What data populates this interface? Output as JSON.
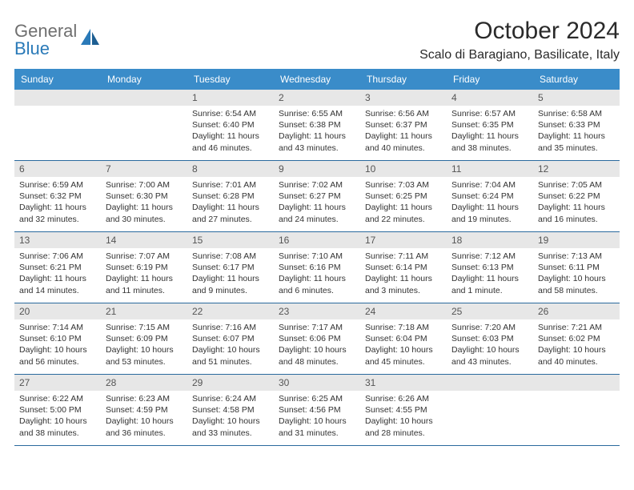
{
  "logo": {
    "text_gray": "General",
    "text_blue": "Blue"
  },
  "title": "October 2024",
  "location": "Scalo di Baragiano, Basilicate, Italy",
  "colors": {
    "header_bg": "#3a8cc9",
    "daynum_bg": "#e7e7e7",
    "week_border": "#2a6a9e",
    "logo_gray": "#6f6f6f",
    "logo_blue": "#2a7ab8"
  },
  "weekdays": [
    "Sunday",
    "Monday",
    "Tuesday",
    "Wednesday",
    "Thursday",
    "Friday",
    "Saturday"
  ],
  "weeks": [
    [
      {
        "n": "",
        "sunrise": "",
        "sunset": "",
        "daylight": ""
      },
      {
        "n": "",
        "sunrise": "",
        "sunset": "",
        "daylight": ""
      },
      {
        "n": "1",
        "sunrise": "Sunrise: 6:54 AM",
        "sunset": "Sunset: 6:40 PM",
        "daylight": "Daylight: 11 hours and 46 minutes."
      },
      {
        "n": "2",
        "sunrise": "Sunrise: 6:55 AM",
        "sunset": "Sunset: 6:38 PM",
        "daylight": "Daylight: 11 hours and 43 minutes."
      },
      {
        "n": "3",
        "sunrise": "Sunrise: 6:56 AM",
        "sunset": "Sunset: 6:37 PM",
        "daylight": "Daylight: 11 hours and 40 minutes."
      },
      {
        "n": "4",
        "sunrise": "Sunrise: 6:57 AM",
        "sunset": "Sunset: 6:35 PM",
        "daylight": "Daylight: 11 hours and 38 minutes."
      },
      {
        "n": "5",
        "sunrise": "Sunrise: 6:58 AM",
        "sunset": "Sunset: 6:33 PM",
        "daylight": "Daylight: 11 hours and 35 minutes."
      }
    ],
    [
      {
        "n": "6",
        "sunrise": "Sunrise: 6:59 AM",
        "sunset": "Sunset: 6:32 PM",
        "daylight": "Daylight: 11 hours and 32 minutes."
      },
      {
        "n": "7",
        "sunrise": "Sunrise: 7:00 AM",
        "sunset": "Sunset: 6:30 PM",
        "daylight": "Daylight: 11 hours and 30 minutes."
      },
      {
        "n": "8",
        "sunrise": "Sunrise: 7:01 AM",
        "sunset": "Sunset: 6:28 PM",
        "daylight": "Daylight: 11 hours and 27 minutes."
      },
      {
        "n": "9",
        "sunrise": "Sunrise: 7:02 AM",
        "sunset": "Sunset: 6:27 PM",
        "daylight": "Daylight: 11 hours and 24 minutes."
      },
      {
        "n": "10",
        "sunrise": "Sunrise: 7:03 AM",
        "sunset": "Sunset: 6:25 PM",
        "daylight": "Daylight: 11 hours and 22 minutes."
      },
      {
        "n": "11",
        "sunrise": "Sunrise: 7:04 AM",
        "sunset": "Sunset: 6:24 PM",
        "daylight": "Daylight: 11 hours and 19 minutes."
      },
      {
        "n": "12",
        "sunrise": "Sunrise: 7:05 AM",
        "sunset": "Sunset: 6:22 PM",
        "daylight": "Daylight: 11 hours and 16 minutes."
      }
    ],
    [
      {
        "n": "13",
        "sunrise": "Sunrise: 7:06 AM",
        "sunset": "Sunset: 6:21 PM",
        "daylight": "Daylight: 11 hours and 14 minutes."
      },
      {
        "n": "14",
        "sunrise": "Sunrise: 7:07 AM",
        "sunset": "Sunset: 6:19 PM",
        "daylight": "Daylight: 11 hours and 11 minutes."
      },
      {
        "n": "15",
        "sunrise": "Sunrise: 7:08 AM",
        "sunset": "Sunset: 6:17 PM",
        "daylight": "Daylight: 11 hours and 9 minutes."
      },
      {
        "n": "16",
        "sunrise": "Sunrise: 7:10 AM",
        "sunset": "Sunset: 6:16 PM",
        "daylight": "Daylight: 11 hours and 6 minutes."
      },
      {
        "n": "17",
        "sunrise": "Sunrise: 7:11 AM",
        "sunset": "Sunset: 6:14 PM",
        "daylight": "Daylight: 11 hours and 3 minutes."
      },
      {
        "n": "18",
        "sunrise": "Sunrise: 7:12 AM",
        "sunset": "Sunset: 6:13 PM",
        "daylight": "Daylight: 11 hours and 1 minute."
      },
      {
        "n": "19",
        "sunrise": "Sunrise: 7:13 AM",
        "sunset": "Sunset: 6:11 PM",
        "daylight": "Daylight: 10 hours and 58 minutes."
      }
    ],
    [
      {
        "n": "20",
        "sunrise": "Sunrise: 7:14 AM",
        "sunset": "Sunset: 6:10 PM",
        "daylight": "Daylight: 10 hours and 56 minutes."
      },
      {
        "n": "21",
        "sunrise": "Sunrise: 7:15 AM",
        "sunset": "Sunset: 6:09 PM",
        "daylight": "Daylight: 10 hours and 53 minutes."
      },
      {
        "n": "22",
        "sunrise": "Sunrise: 7:16 AM",
        "sunset": "Sunset: 6:07 PM",
        "daylight": "Daylight: 10 hours and 51 minutes."
      },
      {
        "n": "23",
        "sunrise": "Sunrise: 7:17 AM",
        "sunset": "Sunset: 6:06 PM",
        "daylight": "Daylight: 10 hours and 48 minutes."
      },
      {
        "n": "24",
        "sunrise": "Sunrise: 7:18 AM",
        "sunset": "Sunset: 6:04 PM",
        "daylight": "Daylight: 10 hours and 45 minutes."
      },
      {
        "n": "25",
        "sunrise": "Sunrise: 7:20 AM",
        "sunset": "Sunset: 6:03 PM",
        "daylight": "Daylight: 10 hours and 43 minutes."
      },
      {
        "n": "26",
        "sunrise": "Sunrise: 7:21 AM",
        "sunset": "Sunset: 6:02 PM",
        "daylight": "Daylight: 10 hours and 40 minutes."
      }
    ],
    [
      {
        "n": "27",
        "sunrise": "Sunrise: 6:22 AM",
        "sunset": "Sunset: 5:00 PM",
        "daylight": "Daylight: 10 hours and 38 minutes."
      },
      {
        "n": "28",
        "sunrise": "Sunrise: 6:23 AM",
        "sunset": "Sunset: 4:59 PM",
        "daylight": "Daylight: 10 hours and 36 minutes."
      },
      {
        "n": "29",
        "sunrise": "Sunrise: 6:24 AM",
        "sunset": "Sunset: 4:58 PM",
        "daylight": "Daylight: 10 hours and 33 minutes."
      },
      {
        "n": "30",
        "sunrise": "Sunrise: 6:25 AM",
        "sunset": "Sunset: 4:56 PM",
        "daylight": "Daylight: 10 hours and 31 minutes."
      },
      {
        "n": "31",
        "sunrise": "Sunrise: 6:26 AM",
        "sunset": "Sunset: 4:55 PM",
        "daylight": "Daylight: 10 hours and 28 minutes."
      },
      {
        "n": "",
        "sunrise": "",
        "sunset": "",
        "daylight": ""
      },
      {
        "n": "",
        "sunrise": "",
        "sunset": "",
        "daylight": ""
      }
    ]
  ]
}
